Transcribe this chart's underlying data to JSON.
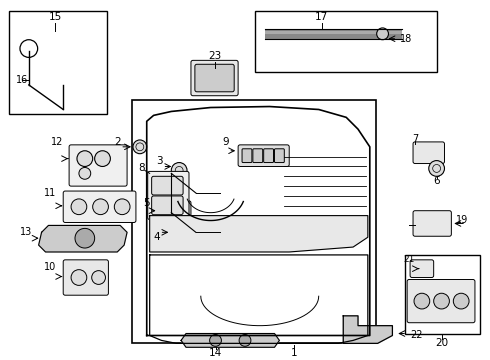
{
  "bg_color": "#ffffff",
  "line_color": "#000000",
  "gray_color": "#888888",
  "light_gray": "#dddddd"
}
